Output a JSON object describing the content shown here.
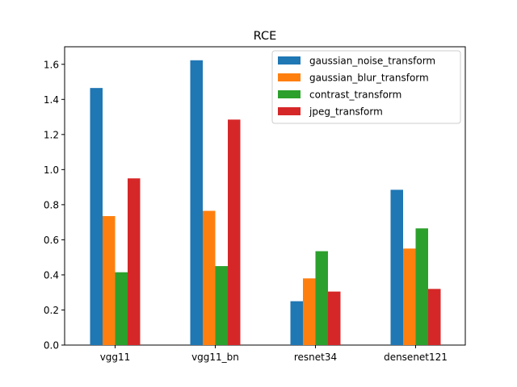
{
  "chart_data": {
    "type": "bar",
    "title": "RCE",
    "xlabel": "",
    "ylabel": "",
    "categories": [
      "vgg11",
      "vgg11_bn",
      "resnet34",
      "densenet121"
    ],
    "series": [
      {
        "name": "gaussian_noise_transform",
        "color": "#1f77b4",
        "values": [
          1.465,
          1.623,
          0.25,
          0.885
        ]
      },
      {
        "name": "gaussian_blur_transform",
        "color": "#ff7f0e",
        "values": [
          0.735,
          0.765,
          0.38,
          0.55
        ]
      },
      {
        "name": "contrast_transform",
        "color": "#2ca02c",
        "values": [
          0.415,
          0.45,
          0.535,
          0.665
        ]
      },
      {
        "name": "jpeg_transform",
        "color": "#d62728",
        "values": [
          0.95,
          1.285,
          0.305,
          0.32
        ]
      }
    ],
    "ylim": [
      0,
      1.7
    ],
    "yticks": [
      "0.0",
      "0.2",
      "0.4",
      "0.6",
      "0.8",
      "1.0",
      "1.2",
      "1.4",
      "1.6"
    ],
    "grid": false,
    "legend_position": "top-right"
  }
}
